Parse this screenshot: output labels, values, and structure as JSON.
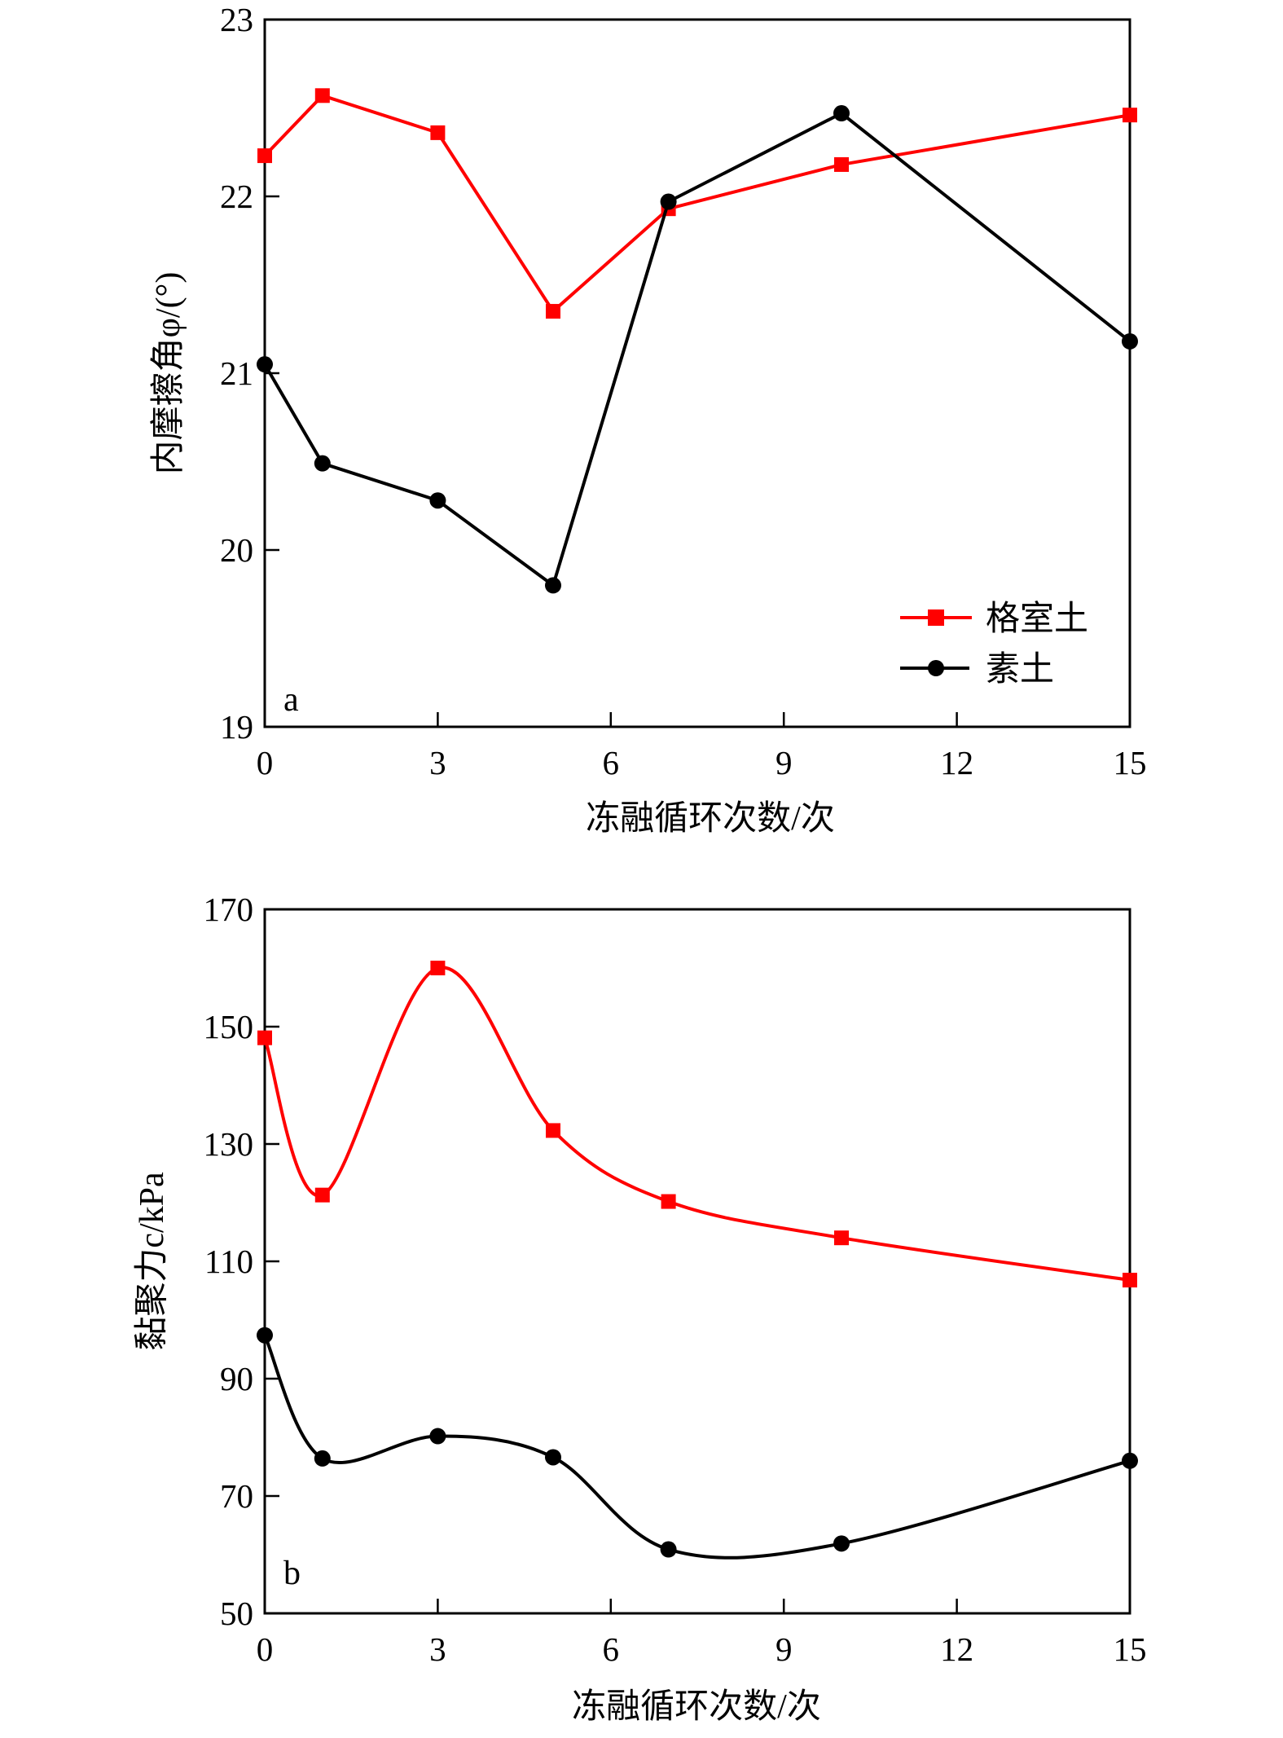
{
  "colors": {
    "cell_soil": "#ff0000",
    "plain_soil": "#000000",
    "axis": "#000000"
  },
  "legend": {
    "placement": "lower-right (panel a)",
    "items": [
      "格室土",
      "素土"
    ]
  },
  "chart_data": [
    {
      "type": "line",
      "panel_label": "a",
      "xlabel": "冻融循环次数/次",
      "ylabel": "内摩擦角φ/(°)",
      "xlim": [
        0,
        15
      ],
      "ylim": [
        19,
        23
      ],
      "xticks": [
        "0",
        "3",
        "6",
        "9",
        "12",
        "15"
      ],
      "yticks": [
        "19",
        "20",
        "21",
        "22",
        "23"
      ],
      "x": [
        0,
        1,
        3,
        5,
        7,
        10,
        15
      ],
      "smooth": false,
      "series": [
        {
          "name": "格室土",
          "marker": "square",
          "color": "#ff0000",
          "values": [
            22.23,
            22.57,
            22.36,
            21.35,
            21.93,
            22.18,
            22.46
          ]
        },
        {
          "name": "素土",
          "marker": "circle",
          "color": "#000000",
          "values": [
            21.05,
            20.49,
            20.28,
            19.8,
            21.97,
            22.47,
            21.18
          ]
        }
      ],
      "legend": true
    },
    {
      "type": "line",
      "panel_label": "b",
      "xlabel": "冻融循环次数/次",
      "ylabel": "黏聚力c/kPa",
      "xlim": [
        0,
        15
      ],
      "ylim": [
        50,
        170
      ],
      "xticks": [
        "0",
        "3",
        "6",
        "9",
        "12",
        "15"
      ],
      "yticks": [
        "50",
        "70",
        "90",
        "110",
        "130",
        "150",
        "170"
      ],
      "x": [
        0,
        1,
        3,
        5,
        7,
        10,
        15
      ],
      "smooth": true,
      "series": [
        {
          "name": "格室土",
          "marker": "square",
          "color": "#ff0000",
          "values": [
            148.1,
            121.3,
            160.0,
            132.3,
            120.2,
            114.0,
            106.8
          ]
        },
        {
          "name": "素土",
          "marker": "circle",
          "color": "#000000",
          "values": [
            97.4,
            76.4,
            80.2,
            76.6,
            60.9,
            61.9,
            76.0
          ]
        }
      ],
      "legend": false
    }
  ]
}
